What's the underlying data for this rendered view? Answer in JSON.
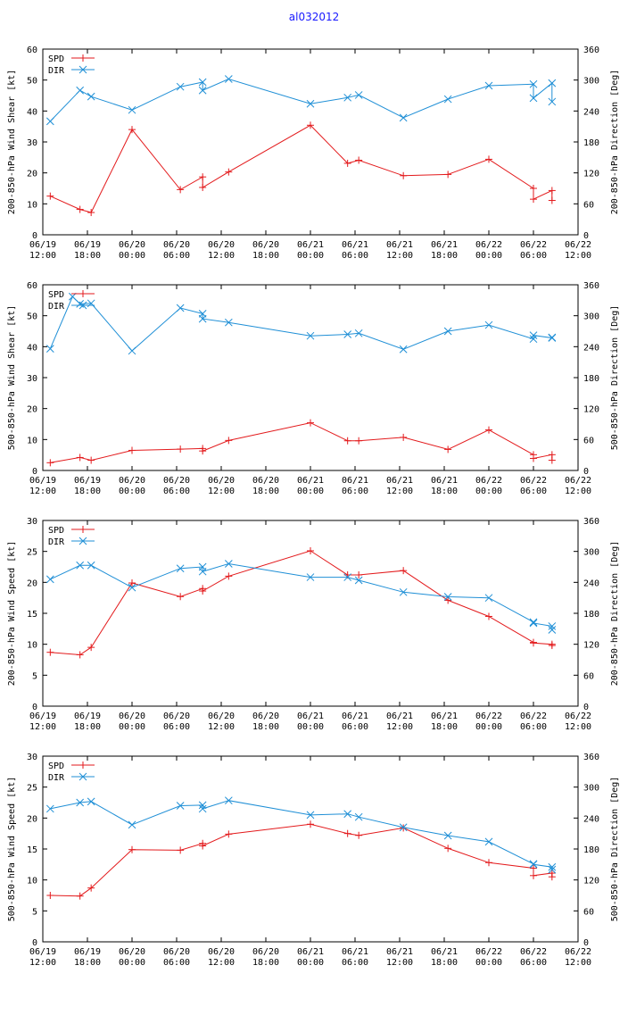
{
  "title": "al032012",
  "colors": {
    "spd": "#e31a1c",
    "dir": "#1f8fd6",
    "axis": "#000000",
    "title": "#1a1aff"
  },
  "x_tick_labels": [
    {
      "date": "06/19",
      "time": "12:00"
    },
    {
      "date": "06/19",
      "time": "18:00"
    },
    {
      "date": "06/20",
      "time": "00:00"
    },
    {
      "date": "06/20",
      "time": "06:00"
    },
    {
      "date": "06/20",
      "time": "12:00"
    },
    {
      "date": "06/20",
      "time": "18:00"
    },
    {
      "date": "06/21",
      "time": "00:00"
    },
    {
      "date": "06/21",
      "time": "06:00"
    },
    {
      "date": "06/21",
      "time": "12:00"
    },
    {
      "date": "06/21",
      "time": "18:00"
    },
    {
      "date": "06/22",
      "time": "00:00"
    },
    {
      "date": "06/22",
      "time": "06:00"
    },
    {
      "date": "06/22",
      "time": "12:00"
    }
  ],
  "chart_data": [
    {
      "type": "line",
      "ylabel": "200-850-hPa Wind Shear [kt]",
      "y2label": "200-850-hPa Direction [Deg]",
      "xlim": [
        0,
        72
      ],
      "ylim": [
        0,
        60
      ],
      "y2lim": [
        0,
        360
      ],
      "yticks": [
        "0",
        "10",
        "20",
        "30",
        "40",
        "50",
        "60"
      ],
      "y2ticks": [
        "0",
        "60",
        "120",
        "180",
        "240",
        "300",
        "360"
      ],
      "legend": [
        "SPD",
        "DIR"
      ],
      "x_units": "hours since 06/19 12:00",
      "series": [
        {
          "name": "SPD",
          "axis": "left",
          "x": [
            1,
            5,
            6.5,
            12,
            18.5,
            21.5,
            21.5,
            25,
            36,
            41,
            42.5,
            48.5,
            54.5,
            60,
            66,
            66,
            68.5,
            68.5
          ],
          "y": [
            12.5,
            8.2,
            7.2,
            34,
            14.6,
            18.7,
            15.3,
            20.3,
            35.4,
            23.1,
            24.1,
            19.1,
            19.5,
            24.4,
            15,
            11.5,
            14.3,
            11.1
          ]
        },
        {
          "name": "DIR",
          "axis": "right",
          "x": [
            1,
            5,
            6.5,
            12,
            18.5,
            21.5,
            21.5,
            25,
            36,
            41,
            42.5,
            48.5,
            54.5,
            60,
            66,
            66,
            68.5,
            68.5
          ],
          "y": [
            220,
            280,
            268,
            242,
            287,
            296,
            280,
            302,
            254,
            266,
            271,
            227,
            263,
            289,
            292,
            265,
            294,
            258
          ]
        }
      ]
    },
    {
      "type": "line",
      "ylabel": "500-850-hPa Wind Shear [kt]",
      "y2label": "500-850-hPa Direction [Deg]",
      "xlim": [
        0,
        72
      ],
      "ylim": [
        0,
        60
      ],
      "y2lim": [
        0,
        360
      ],
      "yticks": [
        "0",
        "10",
        "20",
        "30",
        "40",
        "50",
        "60"
      ],
      "y2ticks": [
        "0",
        "60",
        "120",
        "180",
        "240",
        "300",
        "360"
      ],
      "legend": [
        "SPD",
        "DIR"
      ],
      "x_units": "hours since 06/19 12:00",
      "series": [
        {
          "name": "SPD",
          "axis": "left",
          "x": [
            1,
            5,
            6.5,
            12,
            18.5,
            21.5,
            21.5,
            25,
            36,
            41,
            42.5,
            48.5,
            54.5,
            60,
            66,
            66,
            68.5,
            68.5
          ],
          "y": [
            2.5,
            4.2,
            3.3,
            6.5,
            6.9,
            7.1,
            6.3,
            9.7,
            15.4,
            9.6,
            9.6,
            10.7,
            6.8,
            13.1,
            5.1,
            3.9,
            5.1,
            3.3
          ]
        },
        {
          "name": "DIR",
          "axis": "right",
          "x": [
            1,
            4,
            5,
            6.5,
            12,
            18.5,
            21.5,
            21.5,
            25,
            36,
            41,
            42.5,
            48.5,
            54.5,
            60,
            66,
            66,
            68.5,
            68.5
          ],
          "y": [
            236,
            337,
            323,
            324,
            232,
            315,
            304,
            294,
            287,
            261,
            264,
            266,
            235,
            270,
            282,
            255,
            262,
            257,
            258
          ]
        }
      ]
    },
    {
      "type": "line",
      "ylabel": "200-850-hPa Wind Speed [kt]",
      "y2label": "200-850-hPa Direction [Deg]",
      "xlim": [
        0,
        72
      ],
      "ylim": [
        0,
        30
      ],
      "y2lim": [
        0,
        360
      ],
      "yticks": [
        "0",
        "5",
        "10",
        "15",
        "20",
        "25",
        "30"
      ],
      "y2ticks": [
        "0",
        "60",
        "120",
        "180",
        "240",
        "300",
        "360"
      ],
      "legend": [
        "SPD",
        "DIR"
      ],
      "x_units": "hours since 06/19 12:00",
      "series": [
        {
          "name": "SPD",
          "axis": "left",
          "x": [
            1,
            5,
            6.5,
            12,
            18.5,
            21.5,
            21.5,
            25,
            36,
            41,
            42.5,
            48.5,
            54.5,
            60,
            66,
            66,
            68.5,
            68.5
          ],
          "y": [
            8.7,
            8.3,
            9.5,
            19.9,
            17.7,
            19,
            18.6,
            21,
            25.1,
            21.2,
            21.2,
            21.9,
            17.1,
            14.5,
            10.3,
            10.2,
            10,
            9.8
          ]
        },
        {
          "name": "DIR",
          "axis": "right",
          "x": [
            1,
            5,
            6.5,
            12,
            18.5,
            21.5,
            21.5,
            25,
            36,
            41,
            42.5,
            48.5,
            54.5,
            60,
            66,
            66,
            68.5,
            68.5
          ],
          "y": [
            246,
            273,
            273,
            230,
            267,
            270,
            261,
            276,
            250,
            250,
            244,
            221,
            212,
            210,
            163,
            161,
            155,
            148
          ]
        }
      ]
    },
    {
      "type": "line",
      "ylabel": "500-850-hPa Wind Speed [kt]",
      "y2label": "500-850-hPa Direction [Deg]",
      "xlim": [
        0,
        72
      ],
      "ylim": [
        0,
        30
      ],
      "y2lim": [
        0,
        360
      ],
      "yticks": [
        "0",
        "5",
        "10",
        "15",
        "20",
        "25",
        "30"
      ],
      "y2ticks": [
        "0",
        "60",
        "120",
        "180",
        "240",
        "300",
        "360"
      ],
      "legend": [
        "SPD",
        "DIR"
      ],
      "x_units": "hours since 06/19 12:00",
      "series": [
        {
          "name": "SPD",
          "axis": "left",
          "x": [
            1,
            5,
            6.5,
            12,
            18.5,
            21.5,
            21.5,
            25,
            36,
            41,
            42.5,
            48.5,
            54.5,
            60,
            66,
            66,
            68.5,
            68.5
          ],
          "y": [
            7.5,
            7.4,
            8.7,
            14.9,
            14.8,
            15.9,
            15.5,
            17.4,
            19,
            17.5,
            17.2,
            18.4,
            15.1,
            12.8,
            11.9,
            10.7,
            11.1,
            10.5
          ]
        },
        {
          "name": "DIR",
          "axis": "right",
          "x": [
            1,
            5,
            6.5,
            12,
            18.5,
            21.5,
            21.5,
            25,
            36,
            41,
            42.5,
            48.5,
            54.5,
            60,
            66,
            66,
            68.5,
            68.5
          ],
          "y": [
            258,
            270,
            272,
            227,
            264,
            265,
            258,
            274,
            246,
            248,
            242,
            222,
            206,
            194,
            151,
            150,
            145,
            140
          ]
        }
      ]
    }
  ]
}
